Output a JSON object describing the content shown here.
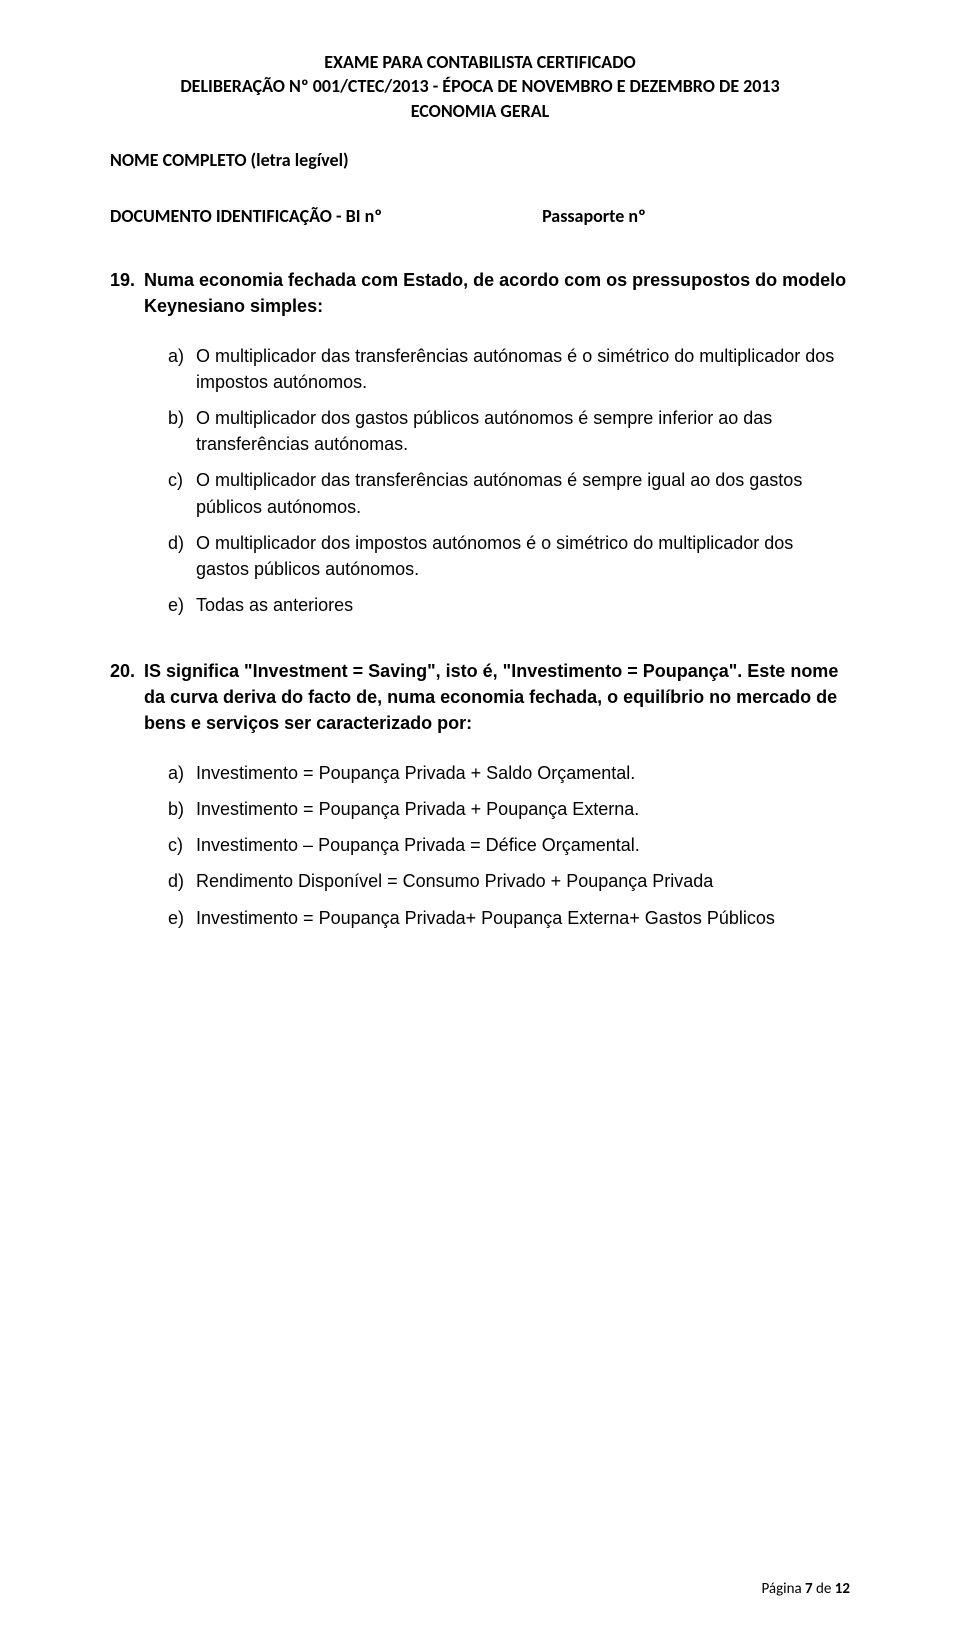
{
  "header": {
    "line1": "EXAME PARA CONTABILISTA CERTIFICADO",
    "line2": "DELIBERAÇÃO Nº 001/CTEC/2013 - ÉPOCA DE NOVEMBRO E DEZEMBRO DE 2013",
    "line3": "ECONOMIA GERAL"
  },
  "form": {
    "name_label": "NOME COMPLETO (letra legível)",
    "doc_label": "DOCUMENTO IDENTIFICAÇÃO - BI nº",
    "passport_label": "Passaporte nº"
  },
  "questions": [
    {
      "number": "19.",
      "text": "Numa economia fechada com Estado, de acordo com os pressupostos do modelo Keynesiano simples:",
      "options": [
        {
          "letter": "a)",
          "text": "O multiplicador das transferências autónomas é o simétrico do multiplicador dos impostos autónomos."
        },
        {
          "letter": "b)",
          "text": "O multiplicador dos gastos públicos autónomos é sempre inferior ao das transferências autónomas."
        },
        {
          "letter": "c)",
          "text": "O multiplicador das transferências autónomas é sempre igual ao dos gastos públicos autónomos."
        },
        {
          "letter": "d)",
          "text": "O multiplicador dos impostos autónomos é o simétrico do multiplicador dos gastos públicos autónomos."
        },
        {
          "letter": "e)",
          "text": "Todas as anteriores"
        }
      ]
    },
    {
      "number": "20.",
      "text": "IS significa \"Investment = Saving\", isto é, \"Investimento = Poupança\". Este nome da curva deriva do facto de, numa economia fechada, o equilíbrio no mercado de bens e serviços ser caracterizado por:",
      "options": [
        {
          "letter": "a)",
          "text": "Investimento = Poupança Privada + Saldo Orçamental."
        },
        {
          "letter": "b)",
          "text": "Investimento = Poupança Privada + Poupança Externa."
        },
        {
          "letter": "c)",
          "text": "Investimento – Poupança Privada = Défice Orçamental."
        },
        {
          "letter": "d)",
          "text": "Rendimento Disponível = Consumo Privado + Poupança Privada"
        },
        {
          "letter": "e)",
          "text": "Investimento = Poupança Privada+ Poupança Externa+ Gastos Públicos"
        }
      ]
    }
  ],
  "footer": {
    "prefix": "Página ",
    "current": "7",
    "mid": " de ",
    "total": "12"
  }
}
